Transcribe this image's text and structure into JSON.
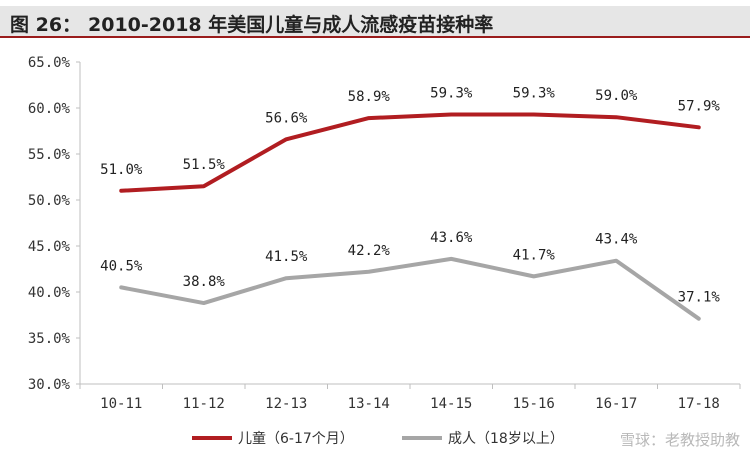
{
  "header": {
    "figure_label": "图 26：",
    "title": "2010-2018 年美国儿童与成人流感疫苗接种率"
  },
  "watermark": "雪球：老教授助教",
  "chart_data": {
    "type": "line",
    "categories": [
      "10-11",
      "11-12",
      "12-13",
      "13-14",
      "14-15",
      "15-16",
      "16-17",
      "17-18"
    ],
    "y_ticks": [
      "30.0%",
      "35.0%",
      "40.0%",
      "45.0%",
      "50.0%",
      "55.0%",
      "60.0%",
      "65.0%"
    ],
    "ylim": [
      30,
      65
    ],
    "grid": false,
    "legend_position": "bottom",
    "series": [
      {
        "name": "儿童（6-17个月）",
        "color": "#b11d21",
        "values": [
          51.0,
          51.5,
          56.6,
          58.9,
          59.3,
          59.3,
          59.0,
          57.9
        ],
        "labels": [
          "51.0%",
          "51.5%",
          "56.6%",
          "58.9%",
          "59.3%",
          "59.3%",
          "59.0%",
          "57.9%"
        ]
      },
      {
        "name": "成人（18岁以上）",
        "color": "#a6a6a6",
        "values": [
          40.5,
          38.8,
          41.5,
          42.2,
          43.6,
          41.7,
          43.4,
          37.1
        ],
        "labels": [
          "40.5%",
          "38.8%",
          "41.5%",
          "42.2%",
          "43.6%",
          "41.7%",
          "43.4%",
          "37.1%"
        ]
      }
    ]
  }
}
